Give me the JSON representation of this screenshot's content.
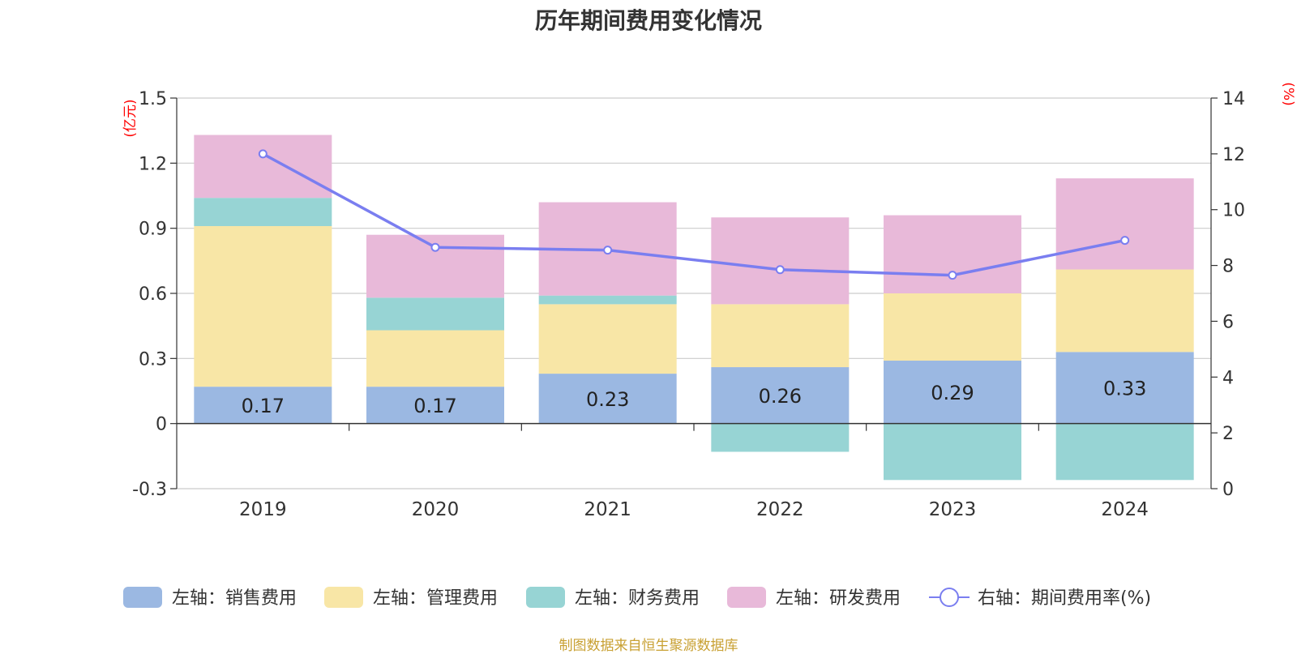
{
  "chart_data": {
    "type": "bar",
    "title": "历年期间费用变化情况",
    "categories": [
      "2019",
      "2020",
      "2021",
      "2022",
      "2023",
      "2024"
    ],
    "left_axis": {
      "unit_label": "(亿元)",
      "ylim": [
        -0.3,
        1.5
      ],
      "ticks": [
        -0.3,
        0,
        0.3,
        0.6,
        0.9,
        1.2,
        1.5
      ],
      "tick_labels": [
        "-0.3",
        "0",
        "0.3",
        "0.6",
        "0.9",
        "1.2",
        "1.5"
      ]
    },
    "right_axis": {
      "unit_label": "(%)",
      "ylim": [
        0,
        14
      ],
      "ticks": [
        0,
        2,
        4,
        6,
        8,
        10,
        12,
        14
      ],
      "tick_labels": [
        "0",
        "2",
        "4",
        "6",
        "8",
        "10",
        "12",
        "14"
      ]
    },
    "grid": true,
    "legend_position": "bottom",
    "series": [
      {
        "name": "左轴：销售费用",
        "type": "bar",
        "axis": "left",
        "color": "#9bb8e2",
        "values": [
          0.17,
          0.17,
          0.23,
          0.26,
          0.29,
          0.33
        ],
        "data_labels": [
          "0.17",
          "0.17",
          "0.23",
          "0.26",
          "0.29",
          "0.33"
        ]
      },
      {
        "name": "左轴：管理费用",
        "type": "bar",
        "axis": "left",
        "color": "#f8e6a6",
        "values": [
          0.74,
          0.26,
          0.32,
          0.29,
          0.31,
          0.38
        ]
      },
      {
        "name": "左轴：财务费用",
        "type": "bar",
        "axis": "left",
        "color": "#97d4d4",
        "values": [
          0.13,
          0.15,
          0.04,
          -0.13,
          -0.26,
          -0.26
        ]
      },
      {
        "name": "左轴：研发费用",
        "type": "bar",
        "axis": "left",
        "color": "#e8b9d9",
        "values": [
          0.29,
          0.29,
          0.43,
          0.4,
          0.36,
          0.42
        ]
      },
      {
        "name": "右轴：期间费用率(%)",
        "type": "line",
        "axis": "right",
        "color": "#7a7ef0",
        "values": [
          12.0,
          8.65,
          8.55,
          7.85,
          7.65,
          8.9
        ]
      }
    ]
  },
  "footer": {
    "source": "制图数据来自恒生聚源数据库"
  }
}
